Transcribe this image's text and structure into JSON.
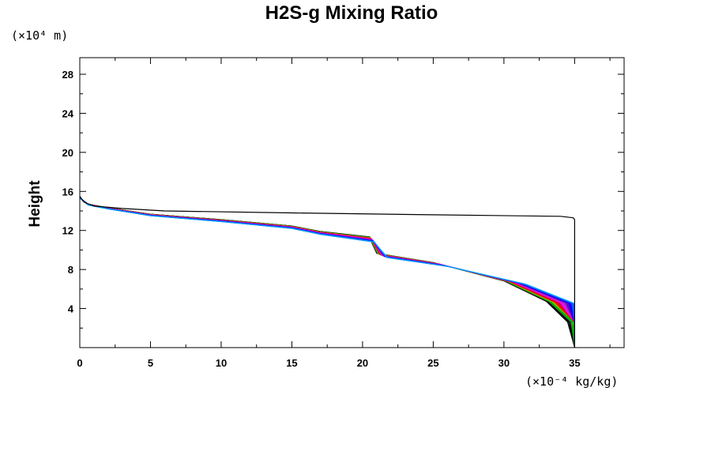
{
  "chart_data": {
    "type": "line",
    "title": "H2S-g Mixing Ratio",
    "ylabel": "Height",
    "xlabel": "",
    "x_unit": "(×10⁻⁴ kg/kg)",
    "y_unit": "(×10⁴ m)",
    "xlim": [
      0,
      38.5
    ],
    "ylim": [
      0,
      29.7
    ],
    "xticks": [
      0,
      5,
      10,
      15,
      20,
      25,
      30,
      35
    ],
    "yticks": [
      4,
      8,
      12,
      16,
      20,
      24,
      28
    ],
    "grid": false,
    "legend": "none",
    "series_colors": [
      "#000000",
      "#00aa00",
      "#aaaa00",
      "#ff0000",
      "#cc0066",
      "#ff00ff",
      "#9933cc",
      "#6600cc",
      "#0000ff",
      "#0055ff",
      "#0099ff"
    ],
    "reference_profile": {
      "color": "#000000",
      "x": [
        35.0,
        35.0,
        34.9,
        34.0,
        25.0,
        15.0,
        6.0,
        3.0,
        1.0,
        0.3,
        0.0
      ],
      "y": [
        0.0,
        13.1,
        13.3,
        13.45,
        13.6,
        13.8,
        14.0,
        14.25,
        14.5,
        14.9,
        15.5
      ]
    },
    "ensemble_profile_template": {
      "x": [
        35.0,
        34.5,
        33.0,
        30.0,
        25.0,
        21.0,
        20.7,
        20.5,
        17.0,
        15.0,
        10.0,
        5.0,
        2.0,
        0.6,
        0.0
      ],
      "y": [
        0.0,
        2.5,
        4.5,
        6.5,
        8.3,
        9.2,
        10.1,
        10.8,
        11.6,
        12.2,
        12.9,
        13.5,
        14.2,
        14.6,
        15.3
      ]
    },
    "ensemble_members": 44
  }
}
